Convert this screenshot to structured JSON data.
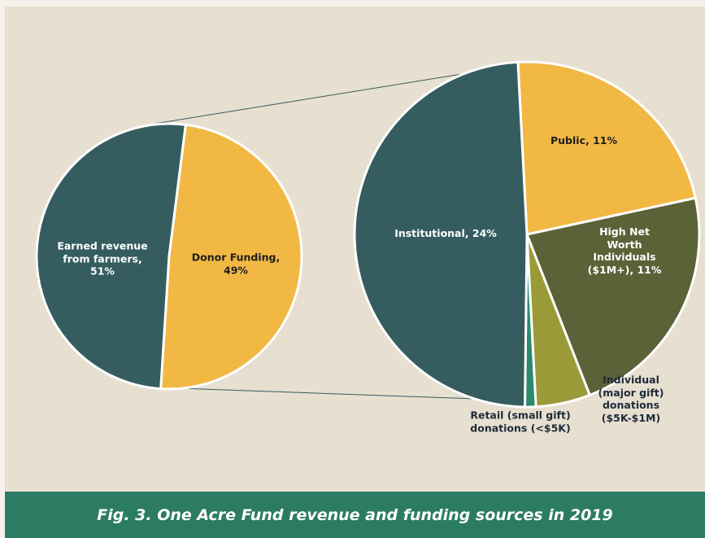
{
  "chart_data": [
    {
      "type": "pie",
      "categories": [
        "Earned revenue\nfrom farmers,\n51%",
        "Donor Funding,\n49%"
      ],
      "values": [
        51,
        49
      ],
      "colors": [
        "#355d60",
        "#f2b844"
      ]
    },
    {
      "type": "pie",
      "categories": [
        "Public, 11%",
        "High Net Worth Individuals\n($1M+), 11%",
        "Individual (major gift)\ndonations ($5K-$1M)",
        "Retail (small gift)\ndonations (<$5K)",
        "Institutional, 24%"
      ],
      "values": [
        11,
        11,
        2.5,
        0.5,
        24
      ],
      "colors": [
        "#f2b844",
        "#5b6237",
        "#9b9a39",
        "#2a8a6b",
        "#355d60"
      ]
    }
  ],
  "caption": "Fig. 3. One Acre Fund revenue and funding sources in 2019"
}
